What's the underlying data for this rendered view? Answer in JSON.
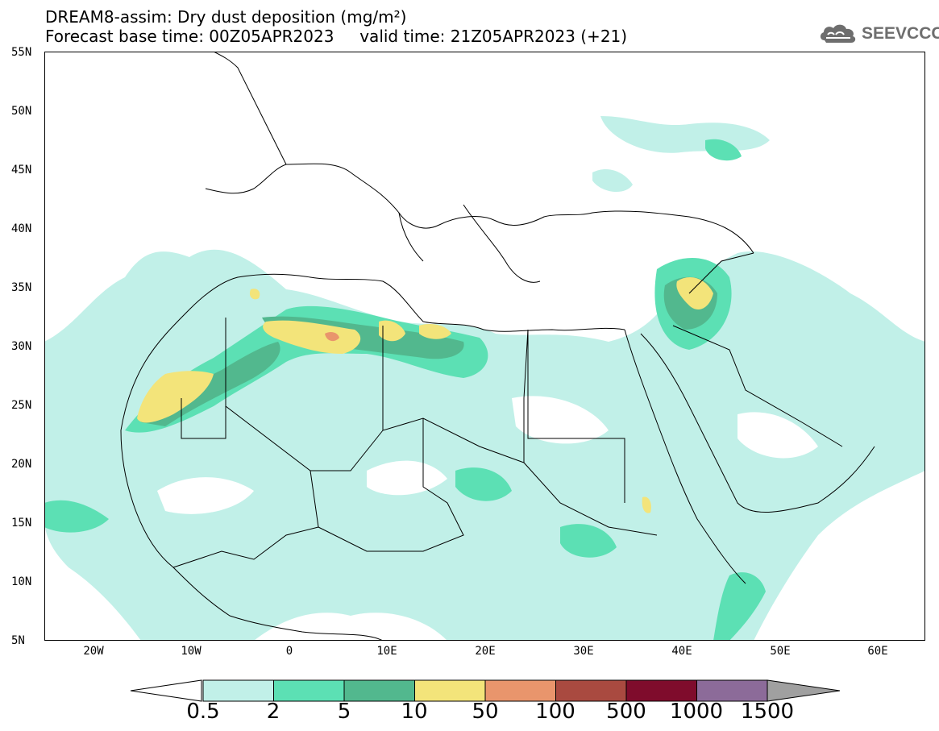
{
  "title": {
    "line1": "DREAM8-assim: Dry dust deposition (mg/m²)",
    "line2": "Forecast base time: 00Z05APR2023     valid time: 21Z05APR2023 (+21)"
  },
  "logo": {
    "text": "SEEVCCC",
    "icon": "cloud-icon"
  },
  "map": {
    "projection": "lat-lon",
    "lat_range": [
      5,
      55
    ],
    "lon_range": [
      -25,
      65
    ],
    "lat_labels": [
      "55N",
      "50N",
      "45N",
      "40N",
      "35N",
      "30N",
      "25N",
      "20N",
      "15N",
      "10N",
      "5N"
    ],
    "lon_labels": [
      "20W",
      "10W",
      "0",
      "10E",
      "20E",
      "30E",
      "40E",
      "50E",
      "60E"
    ],
    "land_color": "#ffffff",
    "border_color": "#000000"
  },
  "legend": {
    "labels": [
      "0.5",
      "2",
      "5",
      "10",
      "50",
      "100",
      "500",
      "1000",
      "1500"
    ],
    "colors": [
      "#c1f0e8",
      "#5ce0b4",
      "#52b88e",
      "#f3e47a",
      "#e9956c",
      "#a94a40",
      "#7f0c2c",
      "#8c6b99"
    ],
    "under_color": "#ffffff",
    "over_color": "#a0a0a0"
  }
}
